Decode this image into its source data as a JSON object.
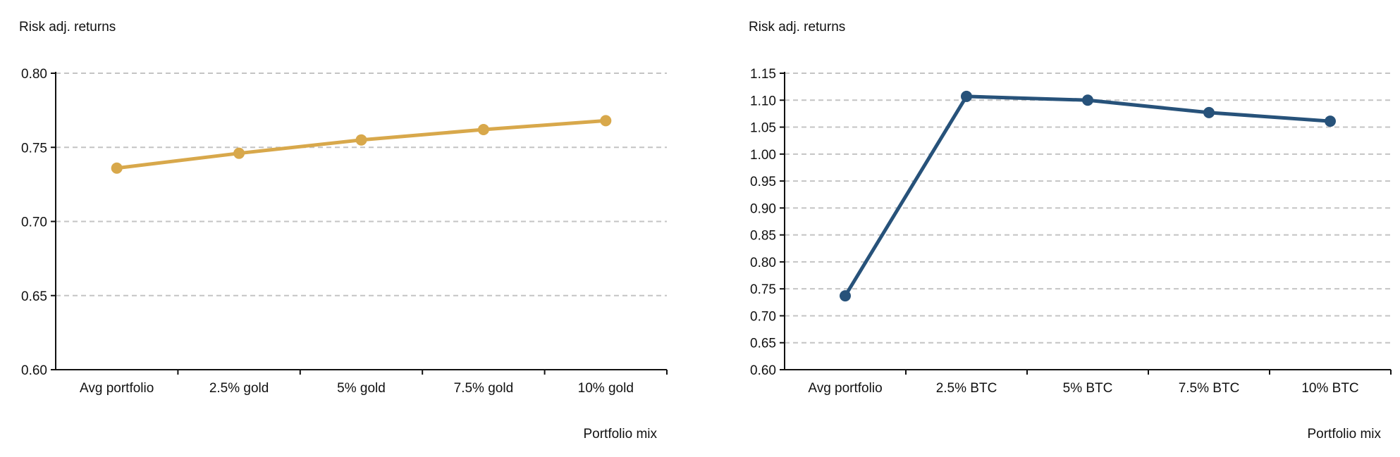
{
  "colors": {
    "gold": "#D8A84B",
    "btc": "#27527A",
    "grid": "#C4C4C4",
    "axis": "#111111"
  },
  "chart_data": [
    {
      "type": "line",
      "ylabel": "Risk adj. returns",
      "xlabel": "Portfolio mix",
      "categories": [
        "Avg portfolio",
        "2.5% gold",
        "5% gold",
        "7.5% gold",
        "10% gold"
      ],
      "series": [
        {
          "values": [
            0.736,
            0.746,
            0.755,
            0.762,
            0.768
          ],
          "color": "#D8A84B"
        }
      ],
      "ylim": [
        0.6,
        0.8
      ],
      "ytick_labels": [
        "0.60",
        "0.65",
        "0.70",
        "0.75",
        "0.80"
      ],
      "grid": true,
      "grid_style": "dashed",
      "legend": false
    },
    {
      "type": "line",
      "ylabel": "Risk adj. returns",
      "xlabel": "Portfolio mix",
      "categories": [
        "Avg portfolio",
        "2.5% BTC",
        "5% BTC",
        "7.5% BTC",
        "10% BTC"
      ],
      "series": [
        {
          "values": [
            0.737,
            1.107,
            1.1,
            1.077,
            1.061
          ],
          "color": "#27527A"
        }
      ],
      "ylim": [
        0.6,
        1.15
      ],
      "ytick_labels": [
        "0.60",
        "0.65",
        "0.70",
        "0.75",
        "0.80",
        "0.85",
        "0.90",
        "0.95",
        "1.00",
        "1.05",
        "1.10",
        "1.15"
      ],
      "grid": true,
      "grid_style": "dashed",
      "legend": false
    }
  ]
}
